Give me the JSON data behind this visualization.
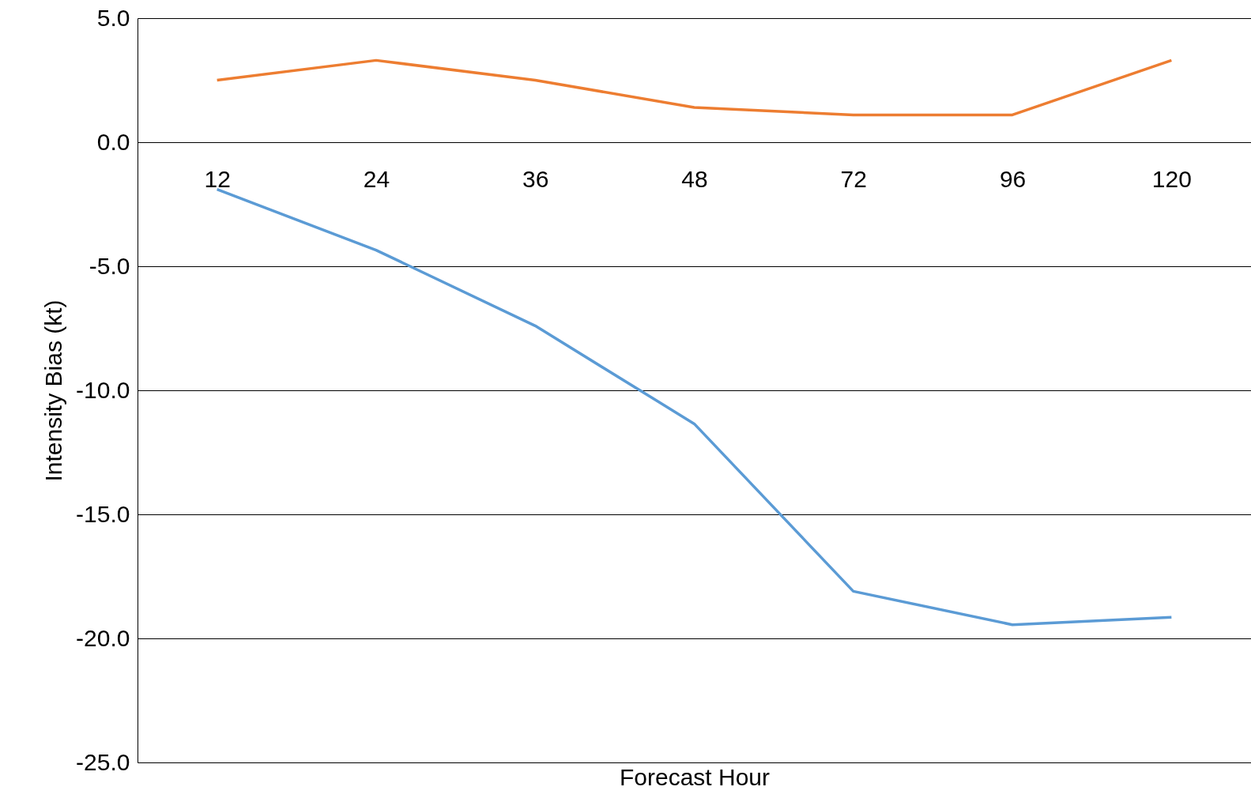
{
  "chart_data": {
    "type": "line",
    "xlabel": "Forecast Hour",
    "ylabel": "Intensity Bias (kt)",
    "categories": [
      "12",
      "24",
      "36",
      "48",
      "72",
      "96",
      "120"
    ],
    "series": [
      {
        "color": "#ed7d31",
        "values": [
          2.5,
          3.3,
          2.5,
          1.4,
          1.1,
          1.1,
          3.3
        ]
      },
      {
        "color": "#5b9bd5",
        "values": [
          -1.9,
          -4.35,
          -7.4,
          -11.35,
          -18.1,
          -19.45,
          -19.15
        ]
      }
    ],
    "ylim": [
      -25,
      5
    ],
    "yticks": [
      {
        "value": -25,
        "label": "-25.0"
      },
      {
        "value": -20,
        "label": "-20.0"
      },
      {
        "value": -15,
        "label": "-15.0"
      },
      {
        "value": -10,
        "label": "-10.0"
      },
      {
        "value": -5,
        "label": "-5.0"
      },
      {
        "value": 0,
        "label": "0.0"
      },
      {
        "value": 5,
        "label": "5.0"
      }
    ],
    "grid": "y",
    "line_style": "solid"
  }
}
